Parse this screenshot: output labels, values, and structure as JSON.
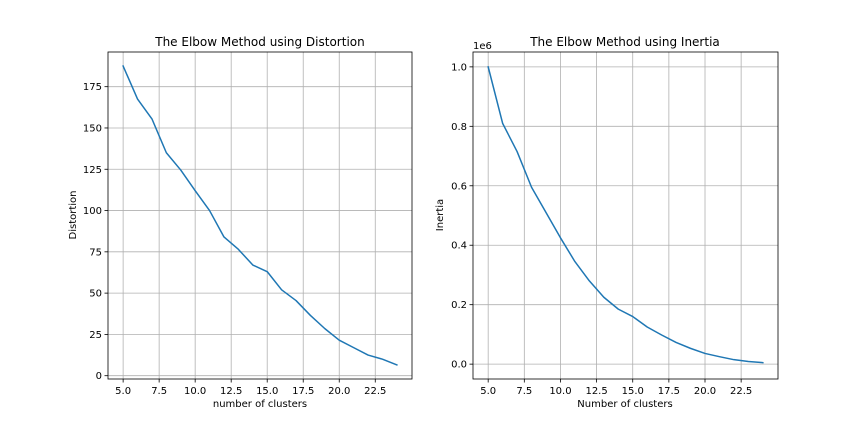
{
  "chart_data": [
    {
      "type": "line",
      "title": "The Elbow Method using Distortion",
      "xlabel": "number of clusters",
      "ylabel": "Distortion",
      "xlim": [
        3.95,
        25.05
      ],
      "ylim": [
        -2.0,
        196.0
      ],
      "xticks": [
        5.0,
        7.5,
        10.0,
        12.5,
        15.0,
        17.5,
        20.0,
        22.5
      ],
      "xtick_labels": [
        "5.0",
        "7.5",
        "10.0",
        "12.5",
        "15.0",
        "17.5",
        "20.0",
        "22.5"
      ],
      "yticks": [
        0,
        25,
        50,
        75,
        100,
        125,
        150,
        175
      ],
      "ytick_labels": [
        "0",
        "25",
        "50",
        "75",
        "100",
        "125",
        "150",
        "175"
      ],
      "grid": true,
      "series": [
        {
          "color": "#1f77b4",
          "x": [
            5,
            6,
            7,
            8,
            9,
            10,
            11,
            12,
            13,
            14,
            15,
            16,
            17,
            18,
            19,
            20,
            21,
            22,
            23,
            24
          ],
          "y": [
            187.5,
            167.5,
            155.5,
            135.0,
            124.5,
            112.0,
            100.0,
            84.0,
            76.5,
            67.0,
            63.0,
            52.0,
            45.5,
            36.5,
            28.5,
            21.5,
            17.0,
            12.5,
            10.0,
            6.5
          ]
        }
      ]
    },
    {
      "type": "line",
      "title": "The Elbow Method using Inertia",
      "xlabel": "Number of clusters",
      "ylabel": "Inertia",
      "offset_text": "1e6",
      "xlim": [
        3.95,
        25.05
      ],
      "ylim": [
        -0.05,
        1.05
      ],
      "xticks": [
        5.0,
        7.5,
        10.0,
        12.5,
        15.0,
        17.5,
        20.0,
        22.5
      ],
      "xtick_labels": [
        "5.0",
        "7.5",
        "10.0",
        "12.5",
        "15.0",
        "17.5",
        "20.0",
        "22.5"
      ],
      "yticks": [
        0.0,
        0.2,
        0.4,
        0.6,
        0.8,
        1.0
      ],
      "ytick_labels": [
        "0.0",
        "0.2",
        "0.4",
        "0.6",
        "0.8",
        "1.0"
      ],
      "grid": true,
      "series": [
        {
          "color": "#1f77b4",
          "x": [
            5,
            6,
            7,
            8,
            9,
            10,
            11,
            12,
            13,
            14,
            15,
            16,
            17,
            18,
            19,
            20,
            21,
            22,
            23,
            24
          ],
          "y": [
            1.0,
            0.81,
            0.715,
            0.595,
            0.51,
            0.425,
            0.345,
            0.28,
            0.225,
            0.185,
            0.16,
            0.125,
            0.098,
            0.073,
            0.053,
            0.036,
            0.025,
            0.015,
            0.009,
            0.005
          ]
        }
      ]
    }
  ]
}
